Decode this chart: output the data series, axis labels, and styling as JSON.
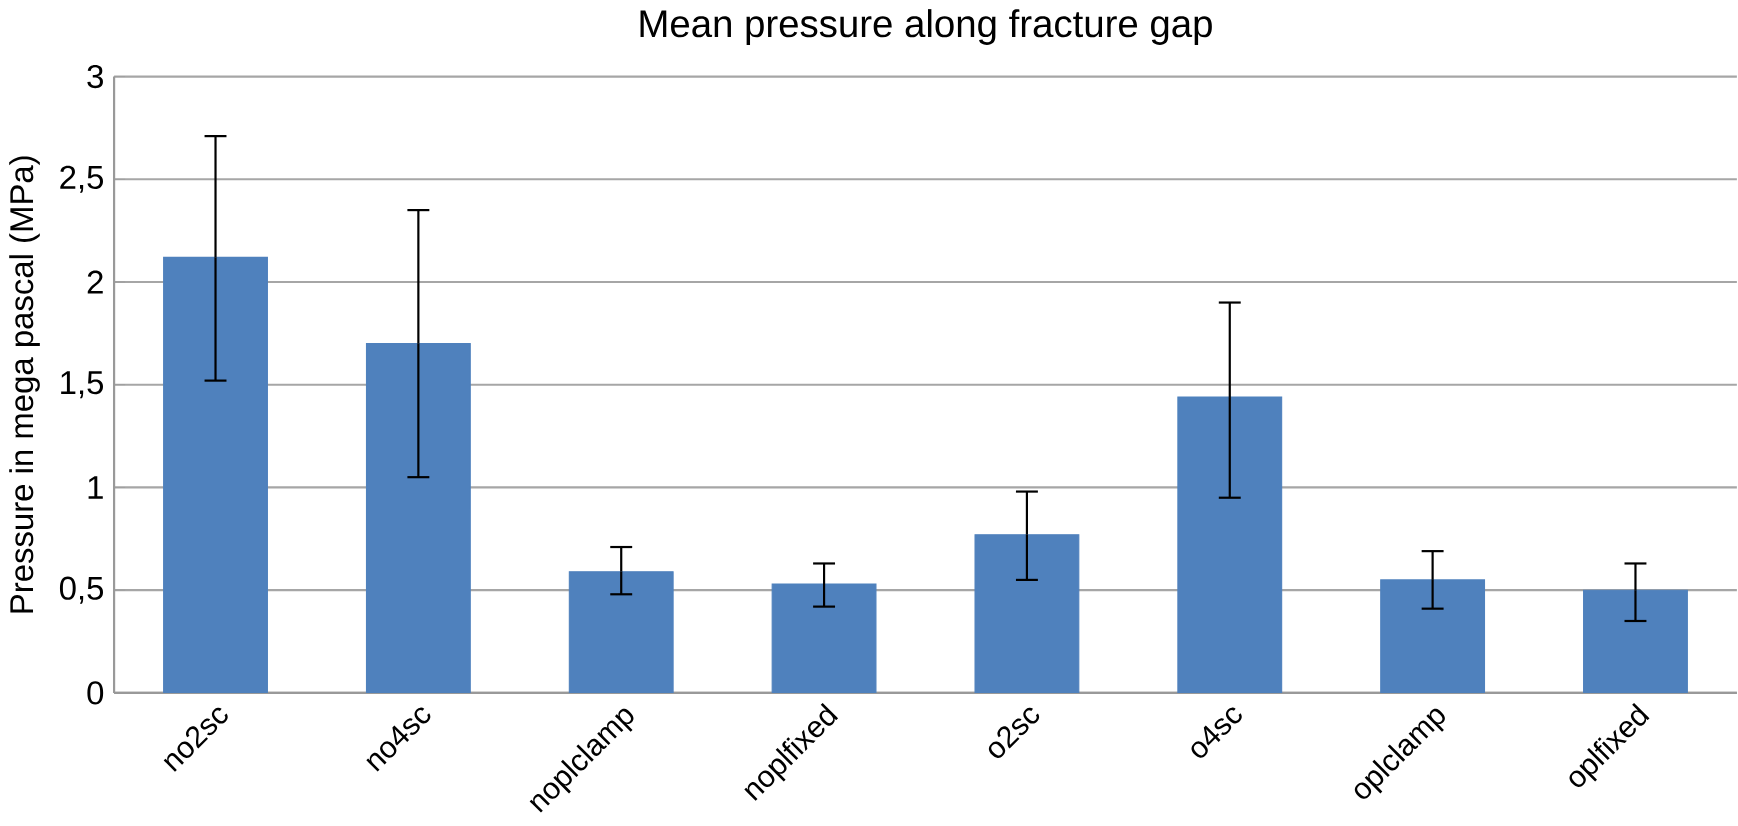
{
  "chart_data": {
    "type": "bar",
    "title": "Mean pressure along fracture gap",
    "ylabel": "Pressure in mega pascal (MPa)",
    "categories": [
      "no2sc",
      "no4sc",
      "noplclamp",
      "noplfixed",
      "o2sc",
      "o4sc",
      "oplclamp",
      "oplfixed"
    ],
    "values": [
      2.12,
      1.7,
      0.59,
      0.53,
      0.77,
      1.44,
      0.55,
      0.5
    ],
    "errors": [
      [
        1.52,
        2.71
      ],
      [
        1.05,
        2.35
      ],
      [
        0.48,
        0.71
      ],
      [
        0.42,
        0.63
      ],
      [
        0.55,
        0.98
      ],
      [
        0.95,
        1.9
      ],
      [
        0.41,
        0.69
      ],
      [
        0.35,
        0.63
      ]
    ],
    "color": "#4f81bd",
    "ylim": [
      0,
      3
    ],
    "yticks": [
      0,
      {
        "value": 0.5,
        "label": "0,5"
      },
      1,
      {
        "value": 1.5,
        "label": "1,5"
      },
      2,
      {
        "value": 2.5,
        "label": "2,5"
      },
      3
    ],
    "grid": "y"
  }
}
